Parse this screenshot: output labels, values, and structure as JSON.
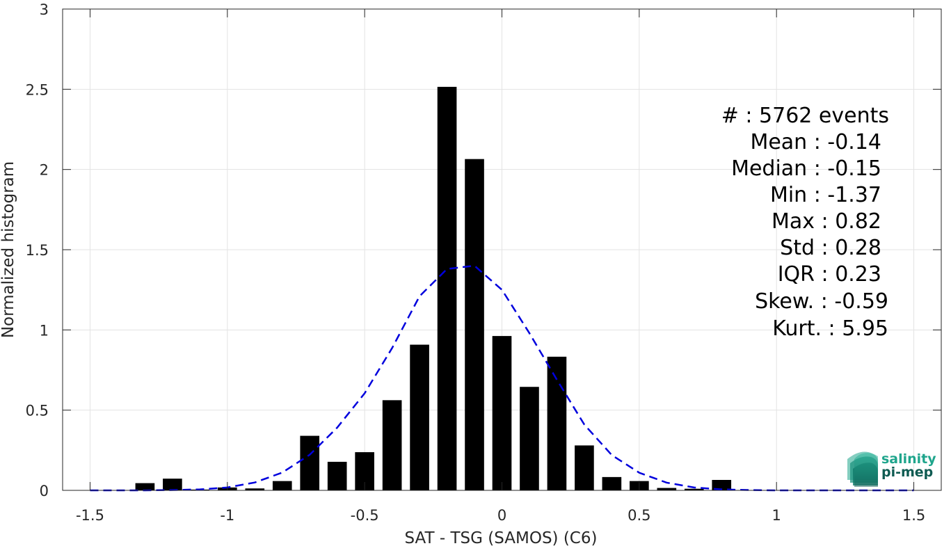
{
  "chart_data": {
    "type": "bar",
    "xlabel": "SAT - TSG (SAMOS) (C6)",
    "ylabel": "Normalized histogram",
    "xlim": [
      -1.6,
      1.6
    ],
    "ylim": [
      0,
      3
    ],
    "xticks": [
      -1.5,
      -1,
      -0.5,
      0,
      0.5,
      1,
      1.5
    ],
    "xtick_labels": [
      "-1.5",
      "-1",
      "-0.5",
      "0",
      "0.5",
      "1",
      "1.5"
    ],
    "yticks": [
      0,
      0.5,
      1,
      1.5,
      2,
      2.5,
      3
    ],
    "ytick_labels": [
      "0",
      "0.5",
      "1",
      "1.5",
      "2",
      "2.5",
      "3"
    ],
    "grid": true,
    "bar_width": 0.07,
    "bars": {
      "x": [
        -1.3,
        -1.2,
        -1.1,
        -1.0,
        -0.9,
        -0.8,
        -0.7,
        -0.6,
        -0.5,
        -0.4,
        -0.3,
        -0.2,
        -0.1,
        0.0,
        0.1,
        0.2,
        0.3,
        0.4,
        0.5,
        0.6,
        0.7,
        0.8
      ],
      "values": [
        0.045,
        0.073,
        0.005,
        0.018,
        0.012,
        0.058,
        0.34,
        0.178,
        0.238,
        0.562,
        0.908,
        2.515,
        2.065,
        0.962,
        0.645,
        0.833,
        0.28,
        0.083,
        0.058,
        0.015,
        0.01,
        0.065
      ],
      "color": "#000000"
    },
    "fit_curve": {
      "style": "dashed",
      "color": "#0000dd",
      "x": [
        -1.5,
        -1.4,
        -1.3,
        -1.2,
        -1.1,
        -1.0,
        -0.9,
        -0.8,
        -0.7,
        -0.6,
        -0.5,
        -0.4,
        -0.3,
        -0.2,
        -0.1,
        0.0,
        0.1,
        0.2,
        0.3,
        0.4,
        0.5,
        0.6,
        0.7,
        0.8,
        0.9,
        1.0,
        1.1,
        1.2,
        1.3,
        1.4,
        1.5
      ],
      "y": [
        0.0,
        0.0,
        0.0,
        0.002,
        0.006,
        0.018,
        0.049,
        0.111,
        0.222,
        0.391,
        0.605,
        0.887,
        1.21,
        1.38,
        1.4,
        1.25,
        0.98,
        0.69,
        0.41,
        0.22,
        0.11,
        0.048,
        0.018,
        0.006,
        0.002,
        0.0,
        0.0,
        0.0,
        0.0,
        0.0,
        0.0
      ]
    },
    "stats": [
      "#  : 5762 events",
      "Mean : -0.14",
      "Median : -0.15",
      "Min : -1.37",
      "Max : 0.82",
      "Std : 0.28",
      "IQR : 0.23",
      "Skew. : -0.59",
      "Kurt. : 5.95"
    ]
  },
  "logo": {
    "line1": "salinity",
    "line2": "pi-mep",
    "color1": "#1fa58c",
    "color2": "#0f5b52"
  }
}
